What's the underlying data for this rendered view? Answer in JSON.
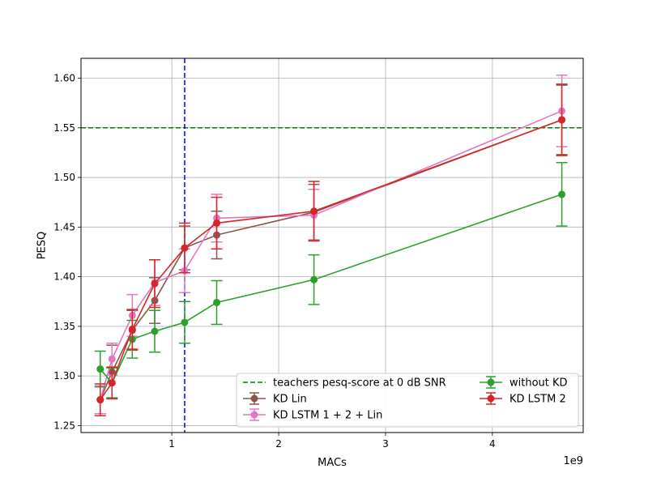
{
  "chart_data": {
    "type": "line",
    "xlabel": "MACs",
    "ylabel": "PESQ",
    "x_offset_label": "1e9",
    "x_ticks": [
      1,
      2,
      3,
      4
    ],
    "y_ticks": [
      1.25,
      1.3,
      1.35,
      1.4,
      1.45,
      1.5,
      1.55,
      1.6
    ],
    "xlim": [
      0.15,
      4.85
    ],
    "ylim": [
      1.243,
      1.62
    ],
    "grid": true,
    "legend_position": "lower-right",
    "reference_line": {
      "name": "teachers pesq-score at 0 dB SNR",
      "y": 1.55,
      "color": "#008000",
      "style": "dashed"
    },
    "marker_line": {
      "x": 1.12,
      "color": "#0000ff",
      "style": "dashed"
    },
    "series": [
      {
        "name": "KD Lin",
        "color": "#8c564b",
        "x": [
          0.33,
          0.44,
          0.63,
          0.84,
          1.12,
          1.42,
          2.33,
          4.65
        ],
        "y": [
          1.276,
          1.304,
          1.346,
          1.376,
          1.429,
          1.442,
          1.465,
          1.558
        ],
        "err": [
          0.014,
          0.027,
          0.02,
          0.023,
          0.022,
          0.024,
          0.028,
          0.035
        ]
      },
      {
        "name": "KD LSTM 1 + 2 + Lin",
        "color": "#e377c2",
        "x": [
          0.33,
          0.44,
          0.63,
          0.84,
          1.12,
          1.42,
          2.33,
          4.65
        ],
        "y": [
          1.276,
          1.317,
          1.361,
          1.394,
          1.406,
          1.459,
          1.462,
          1.567
        ],
        "err": [
          0.014,
          0.016,
          0.021,
          0.023,
          0.022,
          0.024,
          0.026,
          0.036
        ]
      },
      {
        "name": "without KD",
        "color": "#2ca02c",
        "x": [
          0.33,
          0.44,
          0.63,
          0.84,
          1.12,
          1.42,
          2.33,
          4.65
        ],
        "y": [
          1.307,
          1.293,
          1.337,
          1.345,
          1.354,
          1.374,
          1.397,
          1.483
        ],
        "err": [
          0.018,
          0.015,
          0.019,
          0.021,
          0.021,
          0.022,
          0.025,
          0.032
        ]
      },
      {
        "name": "KD LSTM 2",
        "color": "#d62728",
        "x": [
          0.33,
          0.44,
          0.63,
          0.84,
          1.12,
          1.42,
          2.33,
          4.65
        ],
        "y": [
          1.276,
          1.293,
          1.347,
          1.393,
          1.429,
          1.454,
          1.466,
          1.558
        ],
        "err": [
          0.016,
          0.016,
          0.02,
          0.024,
          0.025,
          0.026,
          0.03,
          0.036
        ]
      }
    ],
    "legend": [
      {
        "label": "teachers pesq-score at 0 dB SNR",
        "kind": "reference"
      },
      {
        "label": "KD Lin",
        "kind": "series",
        "index": 0
      },
      {
        "label": "KD LSTM 1 + 2 + Lin",
        "kind": "series",
        "index": 1
      },
      {
        "label": "without KD",
        "kind": "series",
        "index": 2
      },
      {
        "label": "KD LSTM 2",
        "kind": "series",
        "index": 3
      }
    ]
  }
}
